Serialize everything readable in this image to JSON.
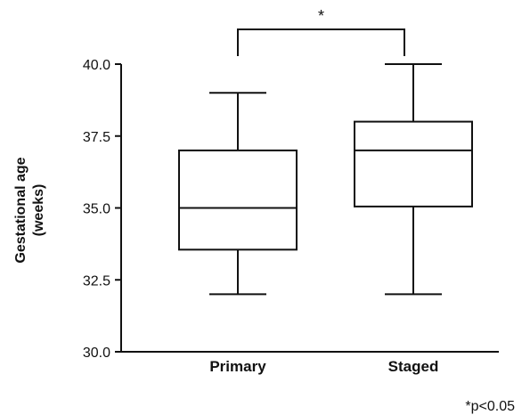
{
  "chart_data": {
    "type": "box",
    "title": "",
    "xlabel": "",
    "ylabel_lines": [
      "Gestational age",
      "(weeks)"
    ],
    "ylim": [
      30.0,
      40.0
    ],
    "yticks": [
      30.0,
      32.5,
      35.0,
      37.5,
      40.0
    ],
    "ytick_labels": [
      "30.0",
      "32.5",
      "35.0",
      "37.5",
      "40.0"
    ],
    "categories": [
      "Primary",
      "Staged"
    ],
    "boxes": [
      {
        "category": "Primary",
        "min": 32.0,
        "q1": 33.55,
        "median": 35.0,
        "q3": 37.0,
        "max": 39.0
      },
      {
        "category": "Staged",
        "min": 32.0,
        "q1": 35.05,
        "median": 37.0,
        "q3": 38.0,
        "max": 40.0
      }
    ],
    "significance": {
      "between": [
        "Primary",
        "Staged"
      ],
      "marker": "*"
    },
    "footnote": "*p<0.05",
    "grid": false,
    "colors": {
      "line": "#111111",
      "background": "#ffffff"
    }
  }
}
